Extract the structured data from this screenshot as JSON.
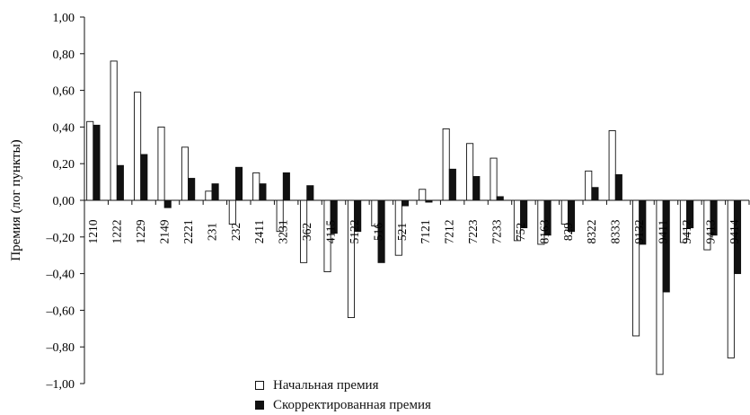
{
  "chart_data": {
    "type": "bar",
    "ylabel": "Премия (лог пункты)",
    "ylim": [
      -1.0,
      1.0
    ],
    "yticks": [
      1.0,
      0.8,
      0.6,
      0.4,
      0.2,
      0.0,
      -0.2,
      -0.4,
      -0.6,
      -0.8,
      -1.0
    ],
    "ytick_labels": [
      "1,00",
      "0,80",
      "0,60",
      "0,40",
      "0,20",
      "0,00",
      "–0,20",
      "–0,40",
      "–0,60",
      "–0,80",
      "–1,00"
    ],
    "categories": [
      "1210",
      "1222",
      "1229",
      "2149",
      "2221",
      "231",
      "232",
      "2411",
      "3231",
      "362",
      "4115",
      "5122",
      "516",
      "521",
      "7121",
      "7212",
      "7223",
      "7233",
      "752",
      "8163",
      "829",
      "8322",
      "8333",
      "9132",
      "9411",
      "9412",
      "9413",
      "9414"
    ],
    "series": [
      {
        "name": "Начальная премия",
        "fill": "#ffffff",
        "values": [
          0.43,
          0.76,
          0.59,
          0.4,
          0.29,
          0.05,
          -0.13,
          0.15,
          -0.17,
          -0.34,
          -0.39,
          -0.64,
          -0.14,
          -0.3,
          0.06,
          0.39,
          0.31,
          0.23,
          -0.22,
          -0.24,
          -0.13,
          0.16,
          0.38,
          -0.74,
          -0.95,
          -0.23,
          -0.27,
          -0.86
        ]
      },
      {
        "name": "Скорректированная премия",
        "fill": "#111111",
        "values": [
          0.41,
          0.19,
          0.25,
          -0.04,
          0.12,
          0.09,
          0.18,
          0.09,
          0.15,
          0.08,
          -0.18,
          -0.17,
          -0.34,
          -0.03,
          -0.01,
          0.17,
          0.13,
          0.02,
          -0.15,
          -0.19,
          -0.17,
          0.07,
          0.14,
          -0.24,
          -0.5,
          -0.15,
          -0.19,
          -0.4
        ]
      }
    ],
    "legend_position": "bottom-center",
    "grid": false
  }
}
